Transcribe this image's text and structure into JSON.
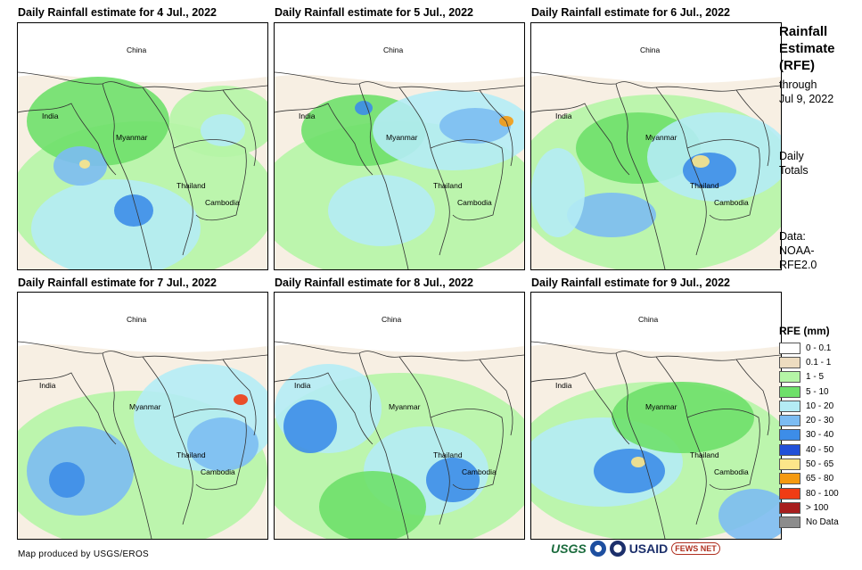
{
  "panels": [
    {
      "title": "Daily Rainfall estimate for 4 Jul., 2022",
      "labels": {
        "china": "China",
        "india": "India",
        "myanmar": "Myanmar",
        "thailand": "Thailand",
        "cambodia": "Cambodia"
      }
    },
    {
      "title": "Daily Rainfall estimate for 5 Jul., 2022",
      "labels": {
        "china": "China",
        "india": "India",
        "myanmar": "Myanmar",
        "thailand": "Thailand",
        "cambodia": "Cambodia"
      }
    },
    {
      "title": "Daily Rainfall estimate for 6 Jul., 2022",
      "labels": {
        "china": "China",
        "india": "India",
        "myanmar": "Myanmar",
        "thailand": "Thailand",
        "cambodia": "Cambodia"
      }
    },
    {
      "title": "Daily Rainfall estimate for 7 Jul., 2022",
      "labels": {
        "china": "China",
        "india": "India",
        "myanmar": "Myanmar",
        "thailand": "Thailand",
        "cambodia": "Cambodia"
      }
    },
    {
      "title": "Daily Rainfall estimate for 8 Jul., 2022",
      "labels": {
        "china": "China",
        "india": "India",
        "myanmar": "Myanmar",
        "thailand": "Thailand",
        "cambodia": "Cambodia"
      }
    },
    {
      "title": "Daily Rainfall estimate for 9 Jul., 2022",
      "labels": {
        "china": "China",
        "india": "India",
        "myanmar": "Myanmar",
        "thailand": "Thailand",
        "cambodia": "Cambodia"
      }
    }
  ],
  "sidebar": {
    "title_line1": "Rainfall",
    "title_line2": "Estimate",
    "title_line3": "(RFE)",
    "through_line1": "through",
    "through_line2": "Jul 9, 2022",
    "daily_line1": "Daily",
    "daily_line2": "Totals",
    "data_line1": "Data:",
    "data_line2": "NOAA-",
    "data_line3": "RFE2.0"
  },
  "legend": {
    "title": "RFE (mm)",
    "items": [
      {
        "label": "0 - 0.1",
        "color": "#ffffff"
      },
      {
        "label": "0.1 - 1",
        "color": "#eddcc0"
      },
      {
        "label": "1 - 5",
        "color": "#b5f5a6"
      },
      {
        "label": "5 - 10",
        "color": "#6ee06a"
      },
      {
        "label": "10 - 20",
        "color": "#b4ecf5"
      },
      {
        "label": "20 - 30",
        "color": "#7cbcf2"
      },
      {
        "label": "30 - 40",
        "color": "#3d8de8"
      },
      {
        "label": "40 - 50",
        "color": "#2150d8"
      },
      {
        "label": "50 - 65",
        "color": "#fce68a"
      },
      {
        "label": "65 - 80",
        "color": "#f59a10"
      },
      {
        "label": "80 - 100",
        "color": "#f03c14"
      },
      {
        "label": "> 100",
        "color": "#a81e1e"
      },
      {
        "label": "No Data",
        "color": "#8c8c8c"
      }
    ]
  },
  "footer": {
    "credit": "Map produced by USGS/EROS"
  },
  "logos": {
    "usgs": "USGS",
    "usaid": "USAID",
    "fews": "FEWS NET"
  }
}
